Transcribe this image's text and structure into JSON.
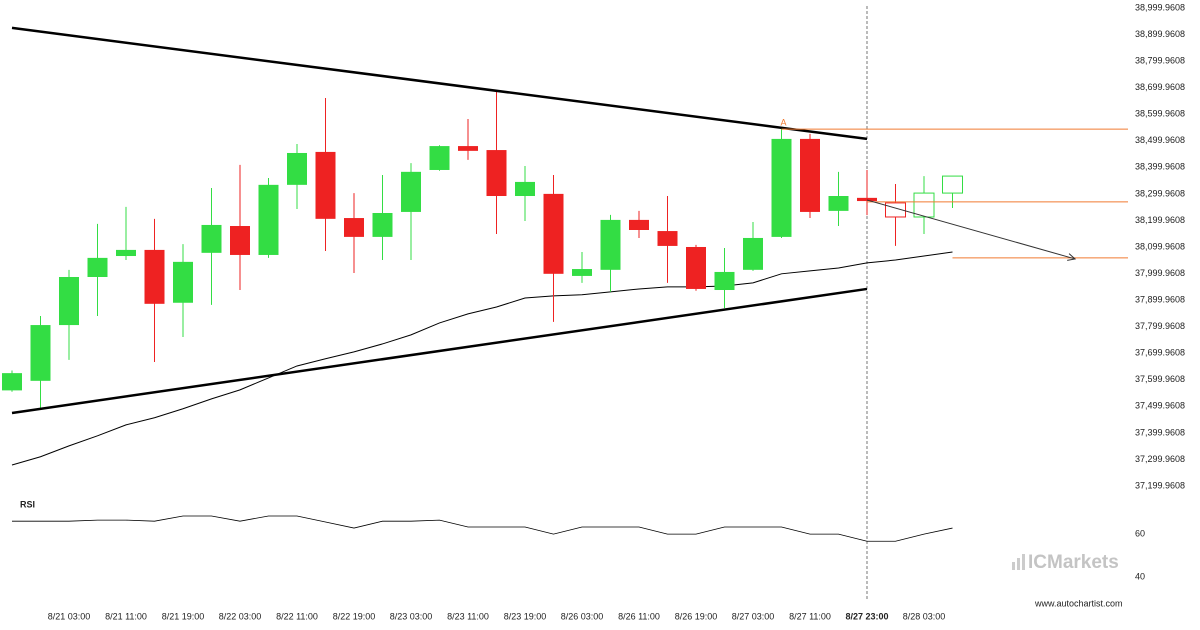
{
  "chart_data": [
    {
      "type": "candlestick",
      "categories": [
        null,
        null,
        "8/21 03:00",
        null,
        "8/21 11:00",
        null,
        "8/21 19:00",
        null,
        "8/22 03:00",
        null,
        "8/22 11:00",
        null,
        "8/22 19:00",
        null,
        "8/23 03:00",
        null,
        "8/23 11:00",
        null,
        "8/23 19:00",
        null,
        "8/26 03:00",
        null,
        "8/26 11:00",
        null,
        "8/26 19:00",
        null,
        "8/27 03:00",
        null,
        "8/27 11:00",
        null,
        "8/27 23:00",
        null,
        "8/28 03:00",
        null
      ],
      "open": [
        37560,
        37596,
        37806,
        37987,
        38066,
        38089,
        37890,
        38078,
        38179,
        38070,
        38334,
        38458,
        38209,
        38138,
        38232,
        38390,
        38480,
        38465,
        38292,
        38300,
        37991,
        38014,
        38202,
        38160,
        38100,
        37938,
        38014,
        38138,
        38507,
        38236,
        38285,
        38266,
        38213,
        38303
      ],
      "high": [
        37635,
        37840,
        38014,
        38187,
        38251,
        38206,
        38111,
        38322,
        38409,
        38360,
        38488,
        38661,
        38303,
        38371,
        38416,
        38483,
        38582,
        38687,
        38405,
        38371,
        38081,
        38221,
        38236,
        38292,
        38108,
        38096,
        38194,
        38552,
        38526,
        38383,
        38390,
        38337,
        38367,
        38367
      ],
      "low": [
        37555,
        37486,
        37675,
        37840,
        38051,
        37667,
        37761,
        37882,
        37938,
        38059,
        38243,
        38085,
        38002,
        38051,
        38051,
        38387,
        38428,
        38149,
        38198,
        37818,
        37965,
        37931,
        38134,
        37965,
        37935,
        37870,
        38010,
        38134,
        38209,
        38179,
        38220,
        38104,
        38149,
        38247
      ],
      "close": [
        37625,
        37806,
        37987,
        38059,
        38089,
        37886,
        38044,
        38183,
        38070,
        38334,
        38454,
        38206,
        38138,
        38228,
        38383,
        38480,
        38462,
        38292,
        38345,
        37999,
        38017,
        38202,
        38164,
        38104,
        37942,
        38006,
        38134,
        38507,
        38232,
        38292,
        38273,
        38213,
        38303,
        38367
      ],
      "hollow": [
        false,
        false,
        false,
        false,
        false,
        false,
        false,
        false,
        false,
        false,
        false,
        false,
        false,
        false,
        false,
        false,
        false,
        false,
        false,
        false,
        false,
        false,
        false,
        false,
        false,
        false,
        false,
        false,
        false,
        false,
        false,
        true,
        true,
        true
      ],
      "up_color": "#33dd44",
      "down_color": "#ee2222",
      "moving_average": [
        37279,
        37310,
        37351,
        37389,
        37430,
        37457,
        37491,
        37528,
        37562,
        37607,
        37652,
        37679,
        37705,
        37735,
        37769,
        37814,
        37848,
        37874,
        37908,
        37916,
        37920,
        37931,
        37942,
        37950,
        37950,
        37953,
        37965,
        37999,
        38010,
        38021,
        38040,
        38051,
        38066,
        38081
      ],
      "trend_lines": [
        {
          "from": [
            0,
            38925
          ],
          "to": [
            30,
            38507
          ]
        },
        {
          "from": [
            0,
            37475
          ],
          "to": [
            30,
            37942
          ]
        }
      ],
      "arrow": {
        "from": [
          30,
          38277
        ],
        "to": [
          37.3,
          38055
        ]
      },
      "levels": [
        {
          "value": 38544,
          "from": 27
        },
        {
          "value": 38270,
          "from": 30
        },
        {
          "value": 38059,
          "from": 33
        }
      ],
      "level_color": "#f07a30",
      "annotation": {
        "text": "A",
        "x": 27,
        "y": 38544
      },
      "vertical_line": 30,
      "ylim": [
        37199.9608,
        38999.9608
      ],
      "yticks": [
        {
          "value": 38999.9608,
          "label": "38,999.9608"
        },
        {
          "value": 38899.9608,
          "label": "38,899.9608"
        },
        {
          "value": 38799.9608,
          "label": "38,799.9608"
        },
        {
          "value": 38699.9608,
          "label": "38,699.9608"
        },
        {
          "value": 38599.9608,
          "label": "38,599.9608"
        },
        {
          "value": 38499.9608,
          "label": "38,499.9608"
        },
        {
          "value": 38399.9608,
          "label": "38,399.9608"
        },
        {
          "value": 38299.9608,
          "label": "38,299.9608"
        },
        {
          "value": 38199.9608,
          "label": "38,199.9608"
        },
        {
          "value": 38099.9608,
          "label": "38,099.9608"
        },
        {
          "value": 37999.9608,
          "label": "37,999.9608"
        },
        {
          "value": 37899.9608,
          "label": "37,899.9608"
        },
        {
          "value": 37799.9608,
          "label": "37,799.9608"
        },
        {
          "value": 37699.9608,
          "label": "37,699.9608"
        },
        {
          "value": 37599.9608,
          "label": "37,599.9608"
        },
        {
          "value": 37499.9608,
          "label": "37,499.9608"
        },
        {
          "value": 37399.9608,
          "label": "37,399.9608"
        },
        {
          "value": 37299.9608,
          "label": "37,299.9608"
        },
        {
          "value": 37199.9608,
          "label": "37,199.9608"
        }
      ]
    },
    {
      "type": "line",
      "title": "RSI",
      "values": [
        66.0,
        66.0,
        66.0,
        66.5,
        66.5,
        66.0,
        68.4,
        68.4,
        66.0,
        68.4,
        68.4,
        65.6,
        62.8,
        66.0,
        66.0,
        66.5,
        63.3,
        63.3,
        63.3,
        60.0,
        63.3,
        63.3,
        63.3,
        60.0,
        60.0,
        63.3,
        63.3,
        63.3,
        60.0,
        60.0,
        56.7,
        56.7,
        60.0,
        62.8
      ],
      "ylim": [
        35,
        80
      ],
      "yticks": [
        60,
        40
      ]
    }
  ],
  "watermark": "ICMarkets",
  "source": "www.autochartist.com"
}
